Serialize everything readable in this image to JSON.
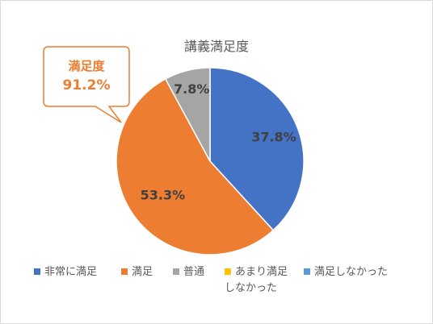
{
  "chart_data": {
    "type": "pie",
    "title": "講義満足度",
    "categories": [
      "非常に満足",
      "満足",
      "普通",
      "あまり満足しなかった",
      "満足しなかった"
    ],
    "values": [
      37.8,
      53.3,
      7.8,
      0.0,
      0.0
    ],
    "data_labels": [
      "37.8%",
      "53.3%",
      "7.8%",
      "",
      ""
    ],
    "colors": [
      "#4472c4",
      "#ed7d31",
      "#a5a5a5",
      "#ffc000",
      "#5b9bd5"
    ],
    "legend_position": "bottom",
    "start_angle_deg": 0,
    "direction": "clockwise"
  },
  "callout": {
    "label": "満足度",
    "value": "91.2%",
    "border_color": "#ed7d31"
  },
  "legend_lines": {
    "item3_line1": "あまり満足",
    "item3_line2": "しなかった"
  }
}
